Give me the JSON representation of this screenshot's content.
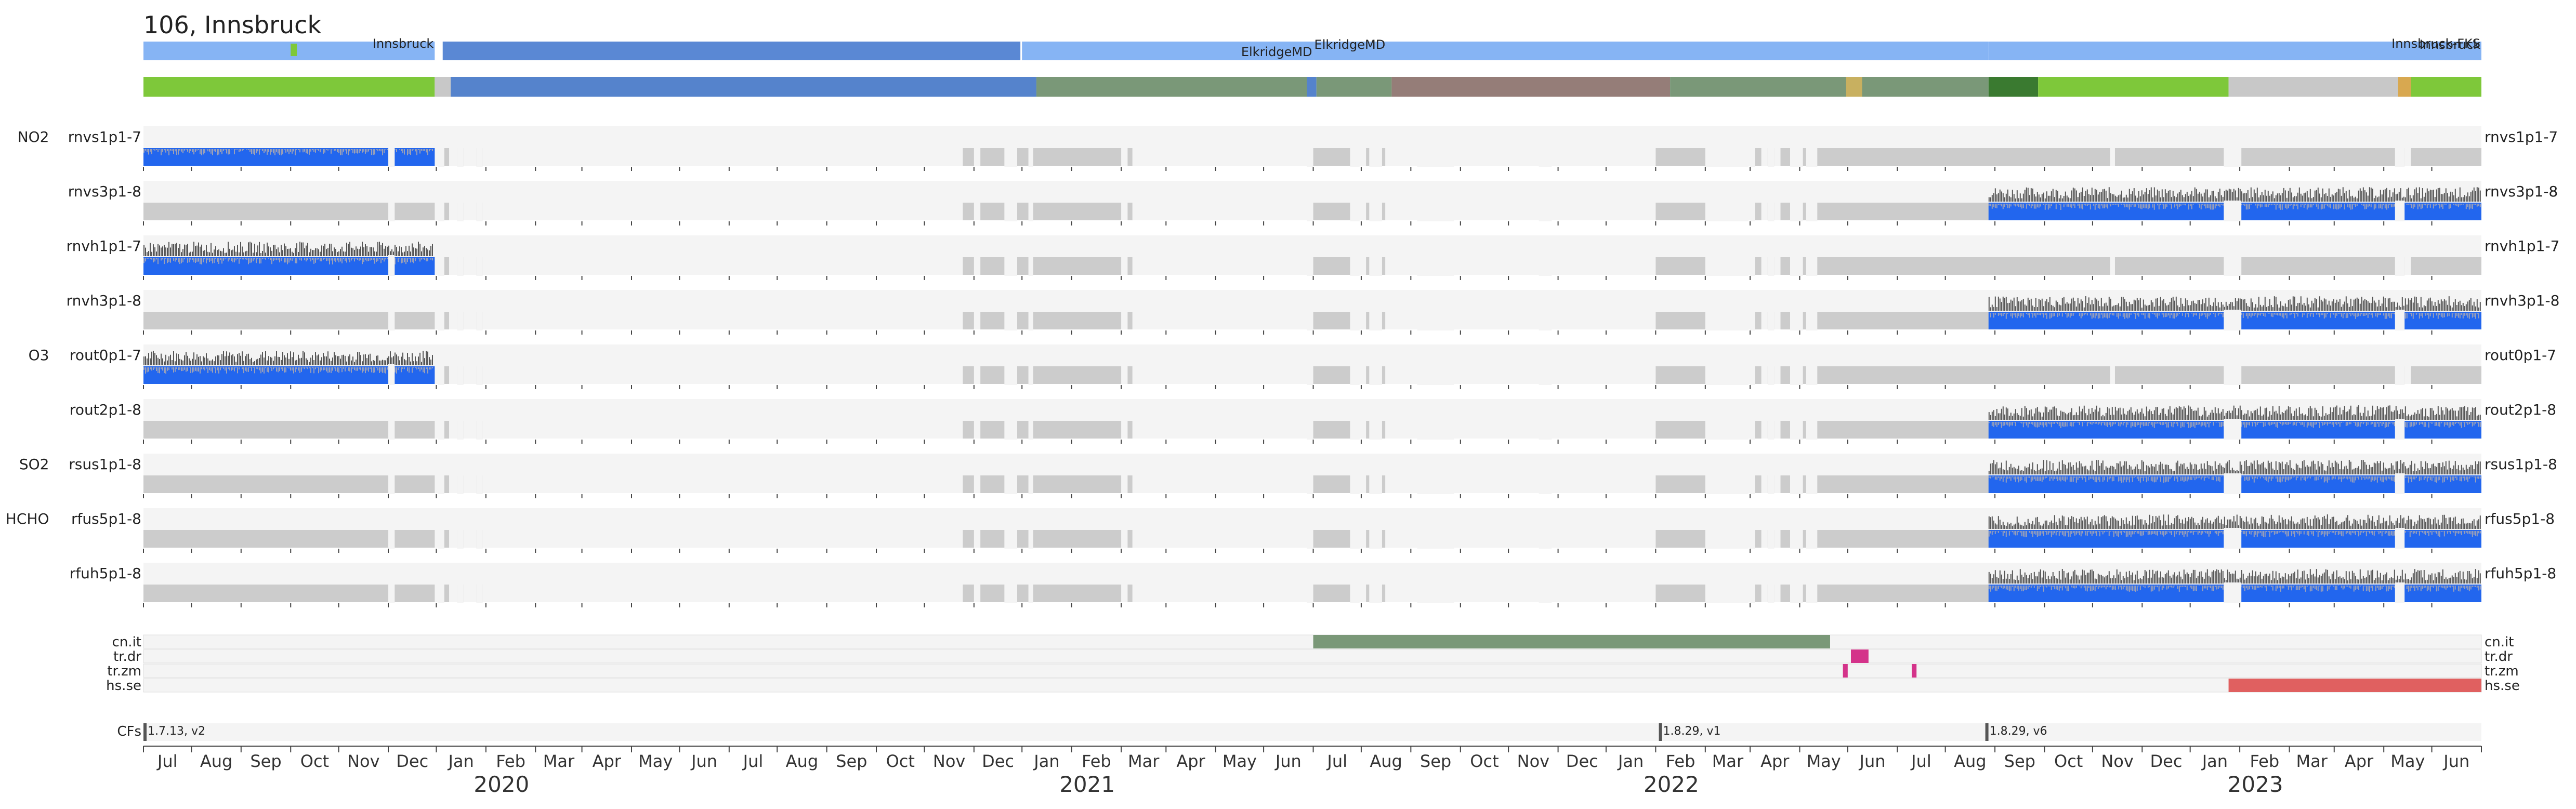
{
  "chart_data": {
    "type": "timeline",
    "title": "106, Innsbruck",
    "x_axis": {
      "start": "2019-06-01",
      "end": "2023-06-01",
      "month_labels": [
        "Jul",
        "Aug",
        "Sep",
        "Oct",
        "Nov",
        "Dec",
        "Jan",
        "Feb",
        "Mar",
        "Apr",
        "May",
        "Jun",
        "Jul",
        "Aug",
        "Sep",
        "Oct",
        "Nov",
        "Dec",
        "Jan",
        "Feb",
        "Mar",
        "Apr",
        "May",
        "Jun",
        "Jul",
        "Aug",
        "Sep",
        "Oct",
        "Nov",
        "Dec",
        "Jan",
        "Feb",
        "Mar",
        "Apr",
        "May",
        "Jun",
        "Jul",
        "Aug",
        "Sep",
        "Oct",
        "Nov",
        "Dec",
        "Jan",
        "Feb",
        "Mar",
        "Apr",
        "May",
        "Jun"
      ],
      "year_labels": [
        "2020",
        "2021",
        "2022",
        "2023"
      ]
    },
    "location_bar": {
      "segments": [
        {
          "start": "2019-06-01",
          "end": "2019-11-30",
          "color": "#86b4f4",
          "label": "Innsbruck"
        },
        {
          "start": "2019-12-05",
          "end": "2020-11-30",
          "color": "#5a88d4",
          "label": ""
        },
        {
          "start": "2020-12-01",
          "end": "2021-06-01",
          "color": "#86b4f4",
          "label": "ElkridgeMD"
        },
        {
          "start": "2021-06-01",
          "end": "2022-07-28",
          "color": "#86b4f4",
          "label": "ElkridgeMD"
        },
        {
          "start": "2022-07-28",
          "end": "2023-06-01",
          "color": "#86b4f4",
          "label": "Innsbruck-FKS"
        }
      ],
      "end_label": "Innsbruck",
      "markers": [
        {
          "date": "2019-09-01",
          "color": "#7ec83a"
        }
      ]
    },
    "status_bar": {
      "segments": [
        {
          "start": "2019-06-01",
          "end": "2019-11-30",
          "color": "#7ec83a"
        },
        {
          "start": "2019-11-30",
          "end": "2019-12-10",
          "color": "#c8c8c8"
        },
        {
          "start": "2019-12-10",
          "end": "2020-12-10",
          "color": "#5583cc"
        },
        {
          "start": "2020-12-10",
          "end": "2021-06-01",
          "color": "#7a9878"
        },
        {
          "start": "2021-05-28",
          "end": "2021-06-03",
          "color": "#5583cc"
        },
        {
          "start": "2021-06-03",
          "end": "2021-07-20",
          "color": "#7a9878"
        },
        {
          "start": "2021-07-20",
          "end": "2022-01-10",
          "color": "#957d78"
        },
        {
          "start": "2022-01-10",
          "end": "2022-07-28",
          "color": "#7a9878"
        },
        {
          "start": "2022-04-30",
          "end": "2022-05-10",
          "color": "#c8b060"
        },
        {
          "start": "2022-07-28",
          "end": "2022-08-28",
          "color": "#3a7a30"
        },
        {
          "start": "2022-08-28",
          "end": "2022-12-25",
          "color": "#7ec83a"
        },
        {
          "start": "2022-12-25",
          "end": "2023-04-10",
          "color": "#c8c8c8"
        },
        {
          "start": "2023-04-10",
          "end": "2023-04-18",
          "color": "#d8a850"
        },
        {
          "start": "2023-04-18",
          "end": "2023-06-01",
          "color": "#7ec83a"
        }
      ]
    },
    "product_rows": [
      {
        "group": "NO2",
        "name": "rnvs1p1-7",
        "active": [
          [
            "2019-06-01",
            "2019-11-30"
          ]
        ],
        "inactive_only": true
      },
      {
        "group": "",
        "name": "rnvs3p1-8",
        "active": [
          [
            "2022-07-28",
            "2023-06-01"
          ]
        ]
      },
      {
        "group": "",
        "name": "rnvh1p1-7",
        "active": [
          [
            "2019-06-01",
            "2019-11-30"
          ]
        ]
      },
      {
        "group": "",
        "name": "rnvh3p1-8",
        "active": [
          [
            "2022-07-28",
            "2023-06-01"
          ]
        ]
      },
      {
        "group": "O3",
        "name": "rout0p1-7",
        "active": [
          [
            "2019-06-01",
            "2019-11-30"
          ]
        ]
      },
      {
        "group": "",
        "name": "rout2p1-8",
        "active": [
          [
            "2022-07-28",
            "2023-06-01"
          ]
        ]
      },
      {
        "group": "SO2",
        "name": "rsus1p1-8",
        "active": [
          [
            "2022-07-28",
            "2023-06-01"
          ]
        ]
      },
      {
        "group": "HCHO",
        "name": "rfus5p1-8",
        "active": [
          [
            "2022-07-28",
            "2023-06-01"
          ]
        ]
      },
      {
        "group": "",
        "name": "rfuh5p1-8",
        "active": [
          [
            "2022-07-28",
            "2023-06-01"
          ]
        ]
      }
    ],
    "flag_rows": [
      {
        "name": "cn.it",
        "spans": [
          {
            "start": "2021-06-01",
            "end": "2022-04-20",
            "color": "#7a9878"
          }
        ]
      },
      {
        "name": "tr.dr",
        "spans": [
          {
            "start": "2022-05-03",
            "end": "2022-05-14",
            "color": "#d4338a"
          }
        ]
      },
      {
        "name": "tr.zm",
        "spans": [
          {
            "start": "2022-04-28",
            "end": "2022-05-01",
            "color": "#d4338a"
          },
          {
            "start": "2022-06-10",
            "end": "2022-06-13",
            "color": "#d4338a"
          }
        ]
      },
      {
        "name": "hs.se",
        "spans": [
          {
            "start": "2022-12-25",
            "end": "2023-06-01",
            "color": "#e06060"
          }
        ]
      }
    ],
    "cfs": {
      "label": "CFs",
      "markers": [
        {
          "date": "2019-06-01",
          "label": "1.7.13, v2"
        },
        {
          "date": "2022-01-03",
          "label": "1.8.29, v1"
        },
        {
          "date": "2022-07-26",
          "label": "1.8.29, v6"
        }
      ]
    }
  }
}
